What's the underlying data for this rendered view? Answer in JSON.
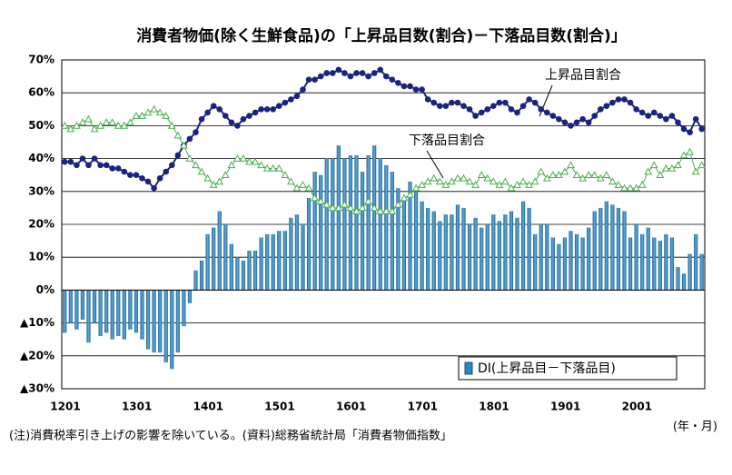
{
  "chart_data": {
    "type": "bar_line",
    "title": "消費者物価(除く生鮮食品)の「上昇品目数(割合)－下落品目数(割合)」",
    "annotations": [
      "上昇品目割合",
      "下落品目割合"
    ],
    "note": "(注)消費税率引き上げの影響を除いている。(資料)総務省統計局「消費者物価指数」",
    "x_unit": "(年・月)",
    "categories": [
      "1201",
      null,
      null,
      null,
      null,
      null,
      null,
      null,
      null,
      null,
      null,
      null,
      "1301",
      null,
      null,
      null,
      null,
      null,
      null,
      null,
      null,
      null,
      null,
      null,
      "1401",
      null,
      null,
      null,
      null,
      null,
      null,
      null,
      null,
      null,
      null,
      null,
      "1501",
      null,
      null,
      null,
      null,
      null,
      null,
      null,
      null,
      null,
      null,
      null,
      "1601",
      null,
      null,
      null,
      null,
      null,
      null,
      null,
      null,
      null,
      null,
      null,
      "1701",
      null,
      null,
      null,
      null,
      null,
      null,
      null,
      null,
      null,
      null,
      null,
      "1801",
      null,
      null,
      null,
      null,
      null,
      null,
      null,
      null,
      null,
      null,
      null,
      "1901",
      null,
      null,
      null,
      null,
      null,
      null,
      null,
      null,
      null,
      null,
      null,
      "2001",
      null,
      null,
      null,
      null,
      null,
      null,
      null,
      null,
      null,
      null,
      null
    ],
    "series": [
      {
        "name": "DI(上昇品目－下落品目)",
        "kind": "bar",
        "color": "#2f86c0",
        "values": [
          -13,
          -10,
          -12,
          -9,
          -16,
          -10,
          -14,
          -13,
          -15,
          -14,
          -15,
          -12,
          -13,
          -15,
          -18,
          -19,
          -19,
          -22,
          -24,
          -19,
          -11,
          -4,
          6,
          9,
          17,
          19,
          24,
          20,
          14,
          10,
          9,
          12,
          12,
          16,
          17,
          17,
          18,
          18,
          22,
          23,
          20,
          28,
          36,
          35,
          40,
          40,
          44,
          40,
          41,
          41,
          36,
          41,
          44,
          40,
          38,
          36,
          31,
          28,
          33,
          30,
          27,
          25,
          24,
          21,
          23,
          23,
          26,
          25,
          20,
          22,
          19,
          20,
          23,
          21,
          23,
          24,
          22,
          27,
          25,
          17,
          20,
          20,
          16,
          14,
          16,
          18,
          17,
          16,
          19,
          24,
          25,
          27,
          26,
          25,
          24,
          16,
          20,
          17,
          19,
          16,
          15,
          17,
          16,
          7,
          5,
          11,
          17,
          11
        ]
      },
      {
        "name": "上昇品目割合",
        "kind": "line",
        "color": "#1a2380",
        "values": [
          39,
          39,
          38,
          40,
          38,
          40,
          38,
          38,
          37,
          37,
          36,
          35,
          35,
          34,
          33,
          31,
          34,
          36,
          38,
          41,
          44,
          46,
          48,
          52,
          54,
          56,
          55,
          53,
          51,
          50,
          52,
          53,
          54,
          55,
          55,
          55,
          56,
          57,
          58,
          59,
          61,
          64,
          64,
          65,
          66,
          66,
          67,
          66,
          65,
          66,
          66,
          65,
          66,
          67,
          65,
          64,
          63,
          62,
          62,
          61,
          61,
          58,
          57,
          56,
          56,
          57,
          57,
          56,
          55,
          53,
          54,
          55,
          56,
          57,
          57,
          55,
          54,
          56,
          58,
          57,
          55,
          54,
          53,
          52,
          51,
          50,
          51,
          52,
          51,
          53,
          55,
          56,
          57,
          58,
          58,
          57,
          55,
          54,
          53,
          54,
          53,
          52,
          53,
          51,
          49,
          48,
          52,
          49
        ]
      },
      {
        "name": "下落品目割合",
        "kind": "line",
        "color": "#4caf50",
        "values": [
          50,
          49,
          50,
          51,
          52,
          49,
          50,
          51,
          51,
          50,
          50,
          51,
          53,
          53,
          54,
          55,
          54,
          53,
          50,
          47,
          44,
          40,
          38,
          36,
          34,
          32,
          33,
          35,
          38,
          40,
          40,
          39,
          39,
          38,
          37,
          37,
          37,
          35,
          33,
          31,
          32,
          31,
          28,
          27,
          26,
          25,
          25,
          26,
          25,
          24,
          25,
          27,
          25,
          24,
          24,
          24,
          26,
          28,
          29,
          31,
          32,
          33,
          34,
          33,
          32,
          33,
          34,
          34,
          33,
          32,
          35,
          34,
          33,
          32,
          33,
          31,
          32,
          33,
          32,
          33,
          36,
          34,
          35,
          35,
          36,
          38,
          35,
          34,
          35,
          35,
          34,
          35,
          33,
          32,
          31,
          31,
          31,
          32,
          36,
          38,
          35,
          37,
          37,
          38,
          41,
          42,
          36,
          38
        ]
      }
    ],
    "ylim": [
      -30,
      70
    ],
    "yticks": [
      {
        "value": 70,
        "label": "70%"
      },
      {
        "value": 60,
        "label": "60%"
      },
      {
        "value": 50,
        "label": "50%"
      },
      {
        "value": 40,
        "label": "40%"
      },
      {
        "value": 30,
        "label": "30%"
      },
      {
        "value": 20,
        "label": "20%"
      },
      {
        "value": 10,
        "label": "10%"
      },
      {
        "value": 0,
        "label": "0%"
      },
      {
        "value": -10,
        "label": "▲10%"
      },
      {
        "value": -20,
        "label": "▲20%"
      },
      {
        "value": -30,
        "label": "▲30%"
      }
    ],
    "grid": true
  }
}
